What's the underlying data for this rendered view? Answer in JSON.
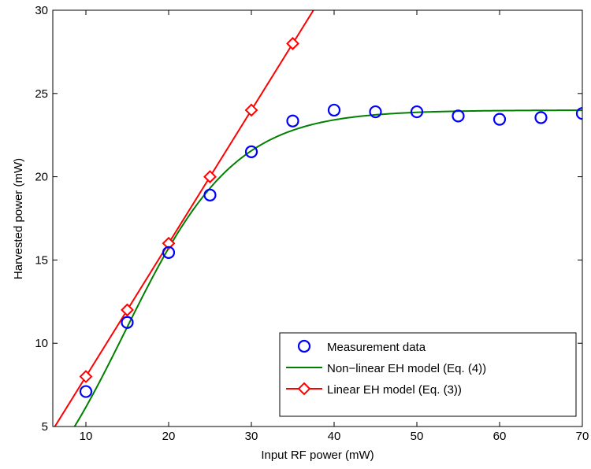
{
  "chart_data": {
    "type": "line",
    "xlabel": "Input RF power (mW)",
    "ylabel": "Harvested power (mW)",
    "xlim": [
      6,
      70
    ],
    "ylim": [
      5,
      30
    ],
    "xticks": [
      10,
      20,
      30,
      40,
      50,
      60,
      70
    ],
    "yticks": [
      5,
      10,
      15,
      20,
      25,
      30
    ],
    "grid": false,
    "legend_position": "bottom-right",
    "series": [
      {
        "name": "Measurement data",
        "kind": "marker-circle",
        "color": "#0000ff",
        "x": [
          10,
          15,
          20,
          25,
          30,
          35,
          40,
          45,
          50,
          55,
          60,
          65,
          70
        ],
        "y": [
          7.1,
          11.25,
          15.45,
          18.9,
          21.5,
          23.35,
          24.0,
          23.9,
          23.9,
          23.65,
          23.45,
          23.55,
          23.8
        ]
      },
      {
        "name": "Non−linear EH model (Eq. (4))",
        "kind": "line",
        "color": "#008000",
        "model": {
          "M": 24,
          "a": 0.15,
          "b": 14.7
        }
      },
      {
        "name": "Linear EH model (Eq. (3))",
        "kind": "line-diamond",
        "color": "#ff0000",
        "slope": 0.8,
        "x": [
          10,
          15,
          20,
          25,
          30,
          35
        ],
        "y": [
          8,
          12,
          16,
          20,
          24,
          28
        ]
      }
    ]
  }
}
